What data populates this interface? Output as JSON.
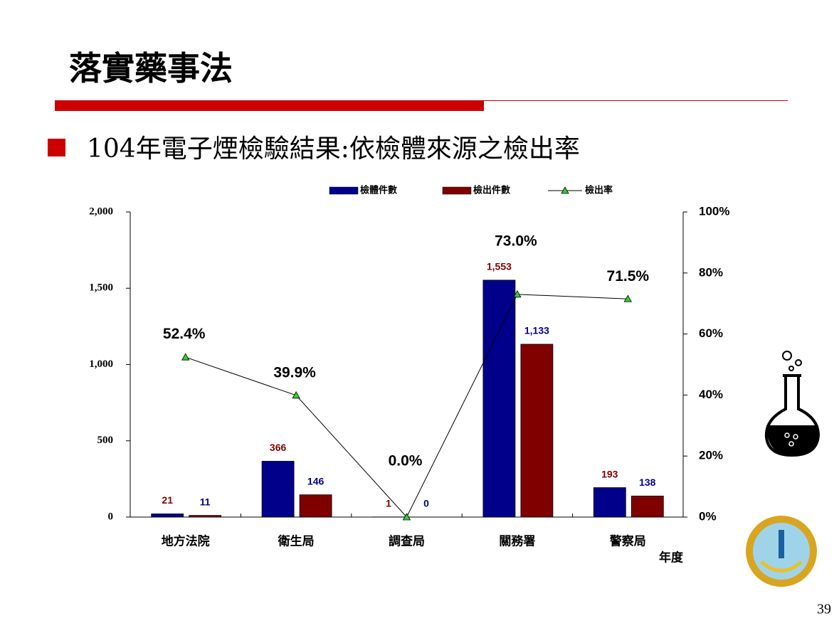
{
  "title": "落實藥事法",
  "page_number": "39",
  "chart_data": {
    "type": "bar",
    "title": "104年電子煙檢驗結果:依檢體來源之檢出率",
    "x_label": "年度",
    "categories": [
      "地方法院",
      "衛生局",
      "調查局",
      "關務署",
      "警察局"
    ],
    "series": [
      {
        "name": "檢體件數",
        "type": "bar",
        "color": "#00008b",
        "values": [
          21,
          366,
          1,
          1553,
          193
        ],
        "value_labels": [
          "21",
          "366",
          "1",
          "1,553",
          "193"
        ]
      },
      {
        "name": "檢出件數",
        "type": "bar",
        "color": "#800000",
        "values": [
          11,
          146,
          0,
          1133,
          138
        ],
        "value_labels": [
          "11",
          "146",
          "0",
          "1,133",
          "138"
        ]
      },
      {
        "name": "檢出率",
        "type": "line",
        "axis": "y2",
        "color": "#000000",
        "marker_color": "#33cc33",
        "values": [
          52.4,
          39.9,
          0.0,
          73.0,
          71.5
        ],
        "value_labels": [
          "52.4%",
          "39.9%",
          "0.0%",
          "73.0%",
          "71.5%"
        ]
      }
    ],
    "ylim": [
      0,
      2000
    ],
    "yticks": [
      0,
      500,
      {
        "value": 1000,
        "label": "1,000"
      },
      {
        "value": 1500,
        "label": "1,500"
      },
      {
        "value": 2000,
        "label": "2,000"
      }
    ],
    "y2lim": [
      0,
      100
    ],
    "y2ticks": [
      {
        "value": 0,
        "label": "0%"
      },
      {
        "value": 20,
        "label": "20%"
      },
      {
        "value": 40,
        "label": "40%"
      },
      {
        "value": 60,
        "label": "60%"
      },
      {
        "value": 80,
        "label": "80%"
      },
      {
        "value": 100,
        "label": "100%"
      }
    ],
    "legend": "top"
  }
}
